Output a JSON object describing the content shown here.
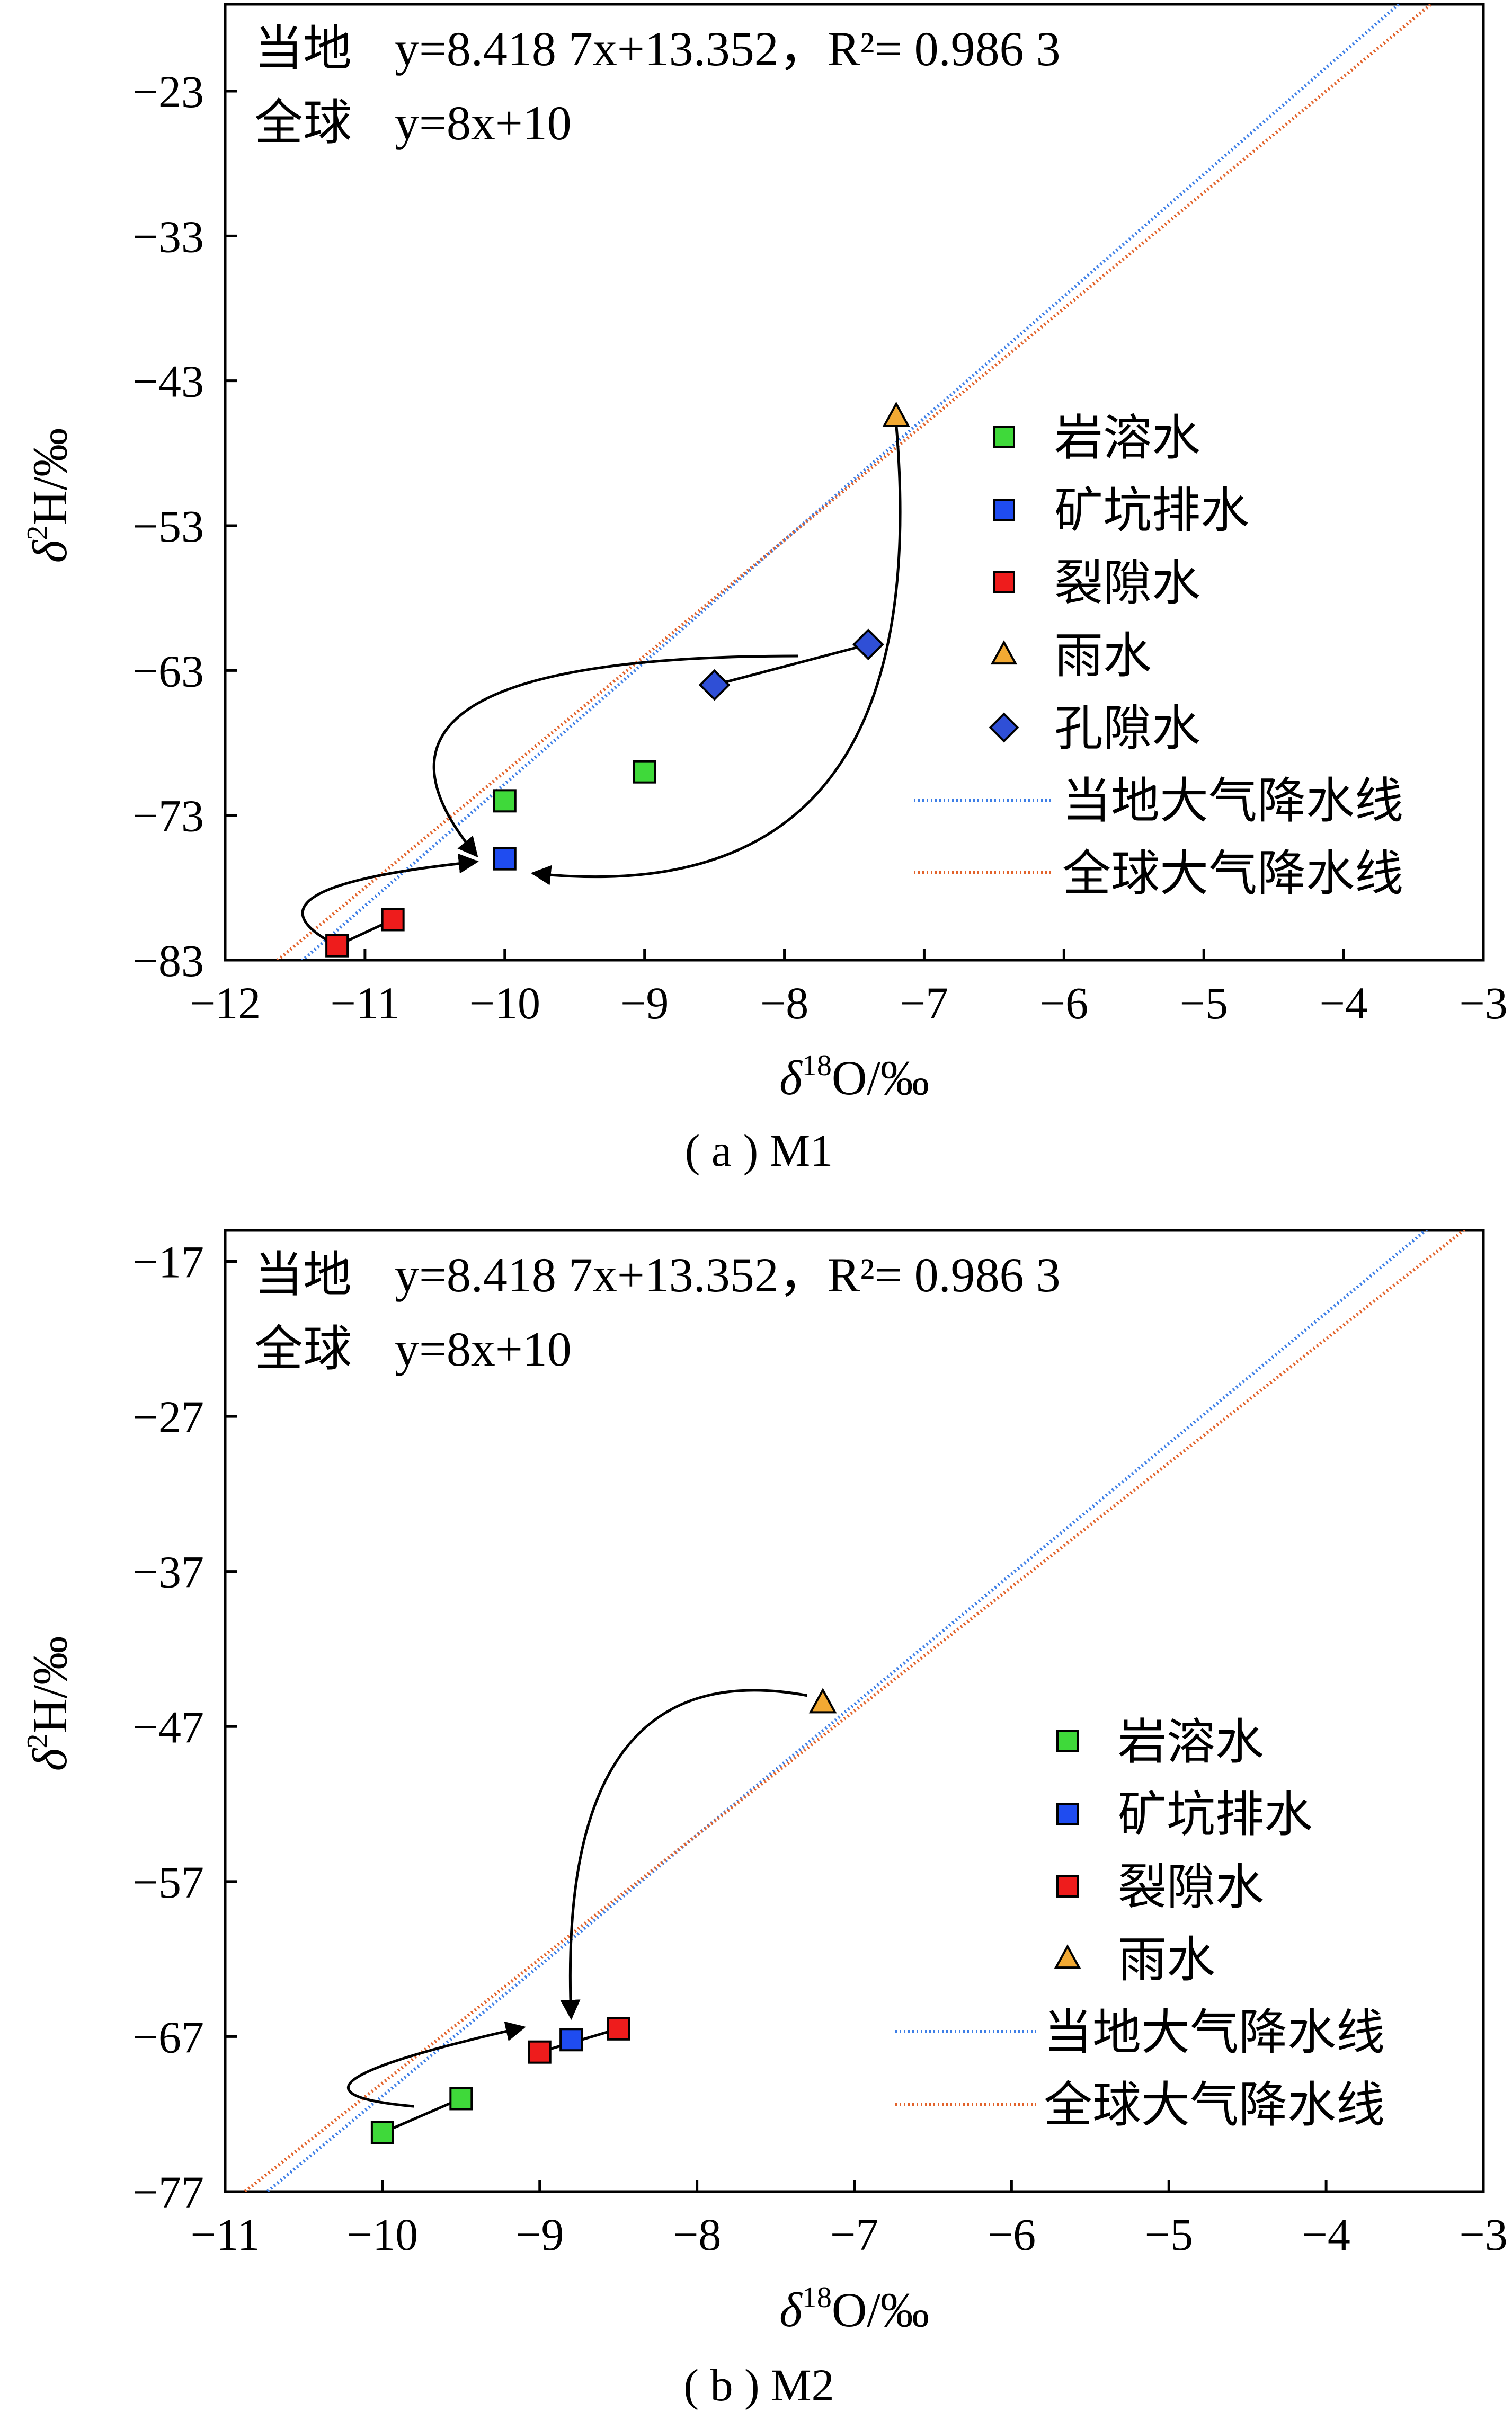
{
  "chart_data": [
    {
      "type": "scatter",
      "caption": "( a ) M1",
      "xlabel_symbol": "δ",
      "xlabel_sup": "18",
      "xlabel_rest": "O/‰",
      "ylabel_symbol": "δ",
      "ylabel_sup": "2",
      "ylabel_rest": "H/‰",
      "xlim": [
        -12,
        -3
      ],
      "ylim": [
        -83,
        -17
      ],
      "x_ticks": [
        -12,
        -11,
        -10,
        -9,
        -8,
        -7,
        -6,
        -5,
        -4,
        -3
      ],
      "x_tick_labels": [
        "−12",
        "−11",
        "−10",
        "−9",
        "−8",
        "−7",
        "−6",
        "−5",
        "−4",
        "−3"
      ],
      "y_ticks": [
        -83,
        -73,
        -63,
        -53,
        -43,
        -33,
        -23
      ],
      "y_tick_labels": [
        "−83",
        "−73",
        "−63",
        "−53",
        "−43",
        "−33",
        "−23"
      ],
      "equations": {
        "local_label": "当地",
        "local_eq": "y=8.418 7x+13.352，R²= 0.986 3",
        "global_label": "全球",
        "global_eq": "y=8x+10"
      },
      "lines": [
        {
          "name": "当地大气降水线",
          "slope": 8.4187,
          "intercept": 13.352,
          "color": "#3d7ee6"
        },
        {
          "name": "全球大气降水线",
          "slope": 8,
          "intercept": 10,
          "color": "#e2622a"
        }
      ],
      "series": [
        {
          "name": "岩溶水",
          "marker": "square",
          "color": "#3fd93a",
          "points": [
            [
              -10.0,
              -72.0
            ],
            [
              -9.0,
              -70.0
            ]
          ]
        },
        {
          "name": "矿坑排水",
          "marker": "square",
          "color": "#1f4cf0",
          "points": [
            [
              -10.0,
              -76.0
            ]
          ]
        },
        {
          "name": "裂隙水",
          "marker": "square",
          "color": "#ee1c1c",
          "points": [
            [
              -11.2,
              -82.0
            ],
            [
              -10.8,
              -80.2
            ]
          ]
        },
        {
          "name": "雨水",
          "marker": "triangle",
          "color": "#f2a933",
          "points": [
            [
              -7.2,
              -45.5
            ]
          ]
        },
        {
          "name": "孔隙水",
          "marker": "diamond",
          "color": "#2f4fd6",
          "points": [
            [
              -8.5,
              -64.0
            ],
            [
              -7.4,
              -61.2
            ]
          ]
        }
      ],
      "connectors": [
        [
          [
            -11.2,
            -82.0
          ],
          [
            -10.8,
            -80.2
          ]
        ],
        [
          [
            -8.5,
            -64.0
          ],
          [
            -7.4,
            -61.2
          ]
        ]
      ],
      "arrows": [
        {
          "path": [
            [
              -11.2,
              -82.0
            ],
            [
              -12.0,
              -78.0
            ],
            [
              -10.2,
              -76.2
            ]
          ]
        },
        {
          "path": [
            [
              -7.9,
              -62.0
            ],
            [
              -11.4,
              -62.0
            ],
            [
              -10.2,
              -75.8
            ]
          ]
        },
        {
          "path": [
            [
              -7.2,
              -46.0
            ],
            [
              -6.9,
              -80.0
            ],
            [
              -9.8,
              -77.0
            ]
          ]
        }
      ],
      "legend_position": "center-right"
    },
    {
      "type": "scatter",
      "caption": "( b ) M2",
      "xlabel_symbol": "δ",
      "xlabel_sup": "18",
      "xlabel_rest": "O/‰",
      "ylabel_symbol": "δ",
      "ylabel_sup": "2",
      "ylabel_rest": "H/‰",
      "xlim": [
        -11,
        -3
      ],
      "ylim": [
        -77,
        -15
      ],
      "x_ticks": [
        -11,
        -10,
        -9,
        -8,
        -7,
        -6,
        -5,
        -4,
        -3
      ],
      "x_tick_labels": [
        "−11",
        "−10",
        "−9",
        "−8",
        "−7",
        "−6",
        "−5",
        "−4",
        "−3"
      ],
      "y_ticks": [
        -77,
        -67,
        -57,
        -47,
        -37,
        -27,
        -17
      ],
      "y_tick_labels": [
        "−77",
        "−67",
        "−57",
        "−47",
        "−37",
        "−27",
        "−17"
      ],
      "equations": {
        "local_label": "当地",
        "local_eq": "y=8.418 7x+13.352，R²= 0.986 3",
        "global_label": "全球",
        "global_eq": "y=8x+10"
      },
      "lines": [
        {
          "name": "当地大气降水线",
          "slope": 8.4187,
          "intercept": 13.352,
          "color": "#3d7ee6"
        },
        {
          "name": "全球大气降水线",
          "slope": 8,
          "intercept": 10,
          "color": "#e2622a"
        }
      ],
      "series": [
        {
          "name": "岩溶水",
          "marker": "square",
          "color": "#3fd93a",
          "points": [
            [
              -10.0,
              -73.2
            ],
            [
              -9.5,
              -71.0
            ]
          ]
        },
        {
          "name": "矿坑排水",
          "marker": "square",
          "color": "#1f4cf0",
          "points": [
            [
              -8.8,
              -67.2
            ]
          ]
        },
        {
          "name": "裂隙水",
          "marker": "square",
          "color": "#ee1c1c",
          "points": [
            [
              -9.0,
              -68.0
            ],
            [
              -8.5,
              -66.5
            ]
          ]
        },
        {
          "name": "雨水",
          "marker": "triangle",
          "color": "#f2a933",
          "points": [
            [
              -7.2,
              -45.5
            ]
          ]
        }
      ],
      "connectors": [
        [
          [
            -10.0,
            -73.2
          ],
          [
            -9.5,
            -71.0
          ]
        ],
        [
          [
            -9.0,
            -68.0
          ],
          [
            -8.5,
            -66.5
          ]
        ]
      ],
      "arrows": [
        {
          "path": [
            [
              -9.8,
              -71.5
            ],
            [
              -10.9,
              -70.5
            ],
            [
              -9.1,
              -66.4
            ]
          ]
        },
        {
          "path": [
            [
              -7.3,
              -45.0
            ],
            [
              -8.9,
              -42.0
            ],
            [
              -8.8,
              -65.8
            ]
          ]
        }
      ],
      "legend_position": "center-right"
    }
  ]
}
